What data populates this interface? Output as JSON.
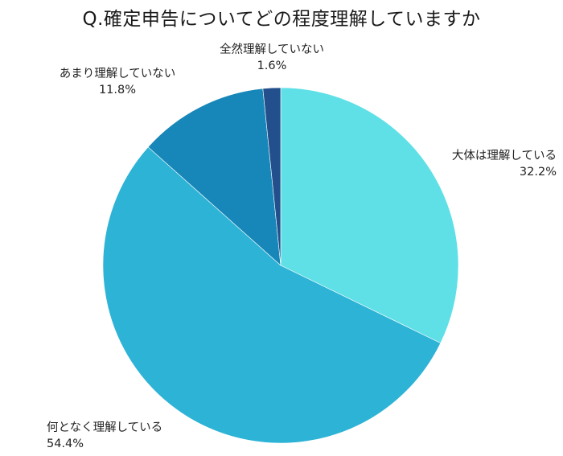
{
  "chart_data": {
    "type": "pie",
    "title": "Q.確定申告についてどの程度理解していますか",
    "slices": [
      {
        "label": "大体は理解している",
        "value": 32.2,
        "value_label": "32.2%",
        "color": "#5ee0e6"
      },
      {
        "label": "何となく理解している",
        "value": 54.4,
        "value_label": "54.4%",
        "color": "#2db3d6"
      },
      {
        "label": "あまり理解していない",
        "value": 11.8,
        "value_label": "11.8%",
        "color": "#1786b8"
      },
      {
        "label": "全然理解していない",
        "value": 1.6,
        "value_label": "1.6%",
        "color": "#234f8c"
      }
    ],
    "start_angle": "12 o'clock",
    "direction": "clockwise",
    "legend": "none"
  }
}
